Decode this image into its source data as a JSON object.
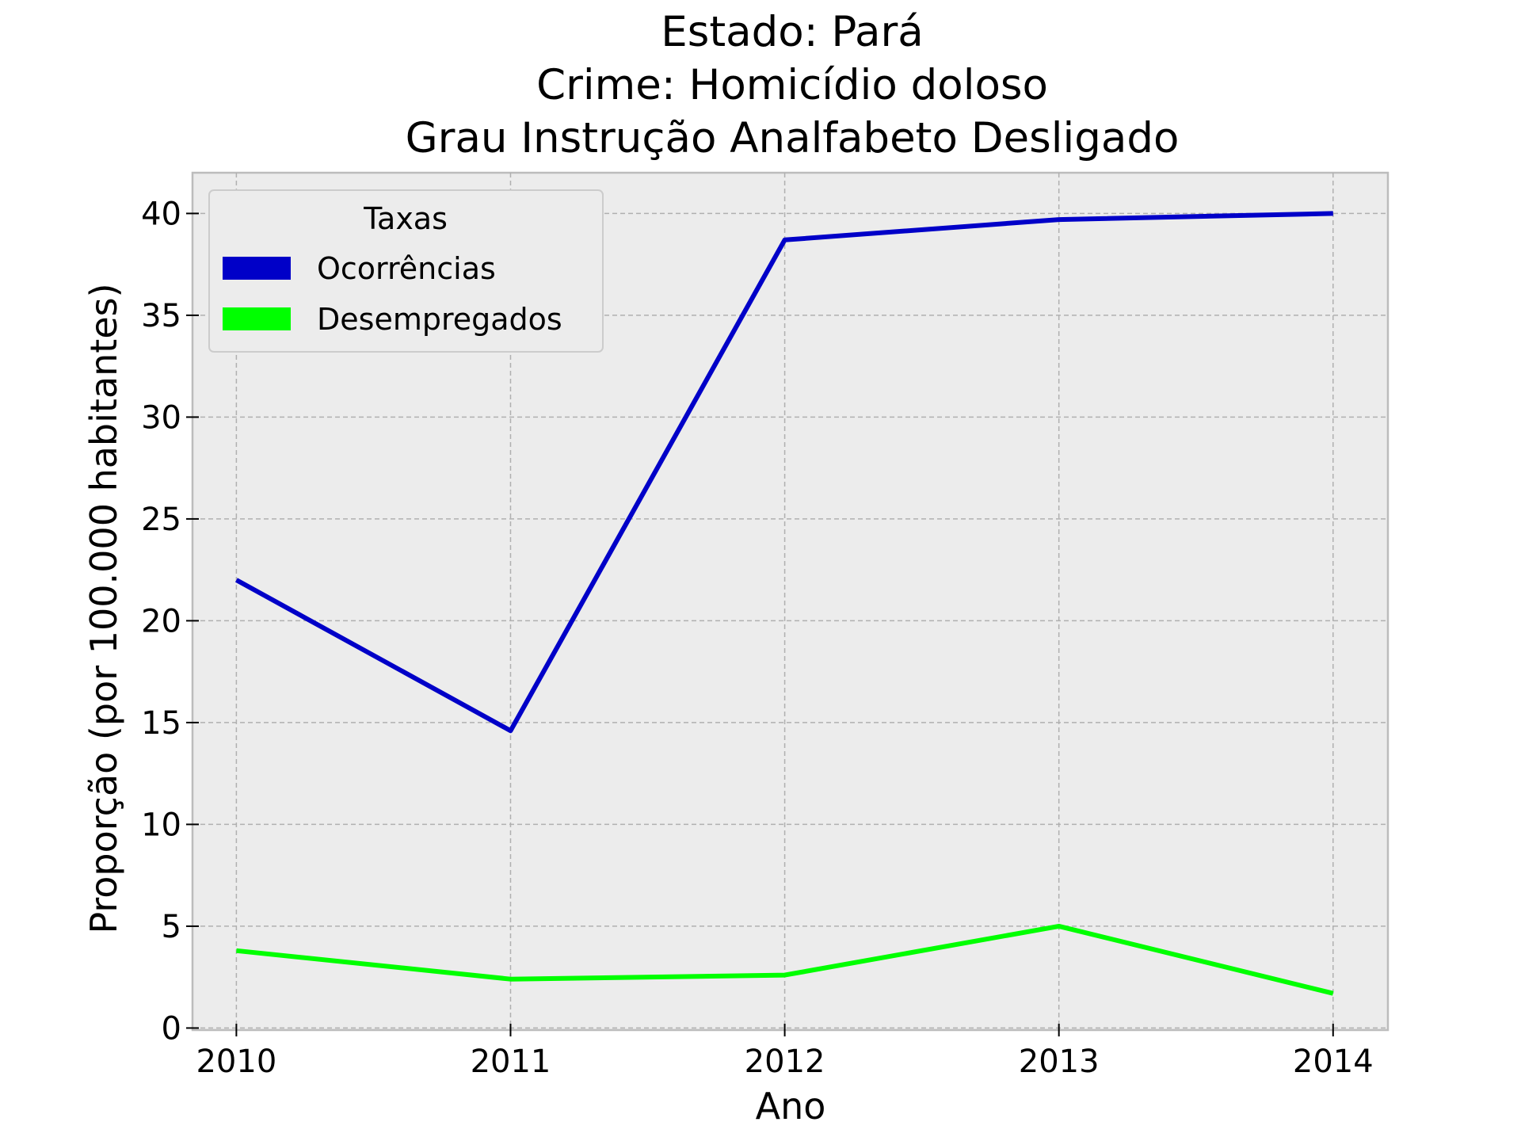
{
  "chart_data": {
    "type": "line",
    "title_lines": [
      "Estado: Pará",
      "Crime: Homicídio doloso",
      "Grau Instrução  Analfabeto   Desligado"
    ],
    "xlabel": "Ano",
    "ylabel": "Proporção (por 100.000 habitantes)",
    "x": [
      2010,
      2011,
      2012,
      2013,
      2014
    ],
    "x_tick_labels": [
      "2010",
      "2011",
      "2012",
      "2013",
      "2014"
    ],
    "y_ticks": [
      0,
      5,
      10,
      15,
      20,
      25,
      30,
      35,
      40
    ],
    "y_tick_labels": [
      "0",
      "5",
      "10",
      "15",
      "20",
      "25",
      "30",
      "35",
      "40"
    ],
    "ylim": [
      -0.1,
      42
    ],
    "xlim": [
      2009.84,
      2014.2
    ],
    "grid": true,
    "legend": {
      "title": "Taxas",
      "placement": "top-left"
    },
    "series": [
      {
        "name": "Ocorrências",
        "color": "#0000c8",
        "values": [
          22.0,
          14.6,
          38.7,
          39.7,
          40.0
        ]
      },
      {
        "name": "Desempregados",
        "color": "#00ff00",
        "values": [
          3.8,
          2.4,
          2.6,
          5.0,
          1.7
        ]
      }
    ],
    "background": "#ececec"
  }
}
